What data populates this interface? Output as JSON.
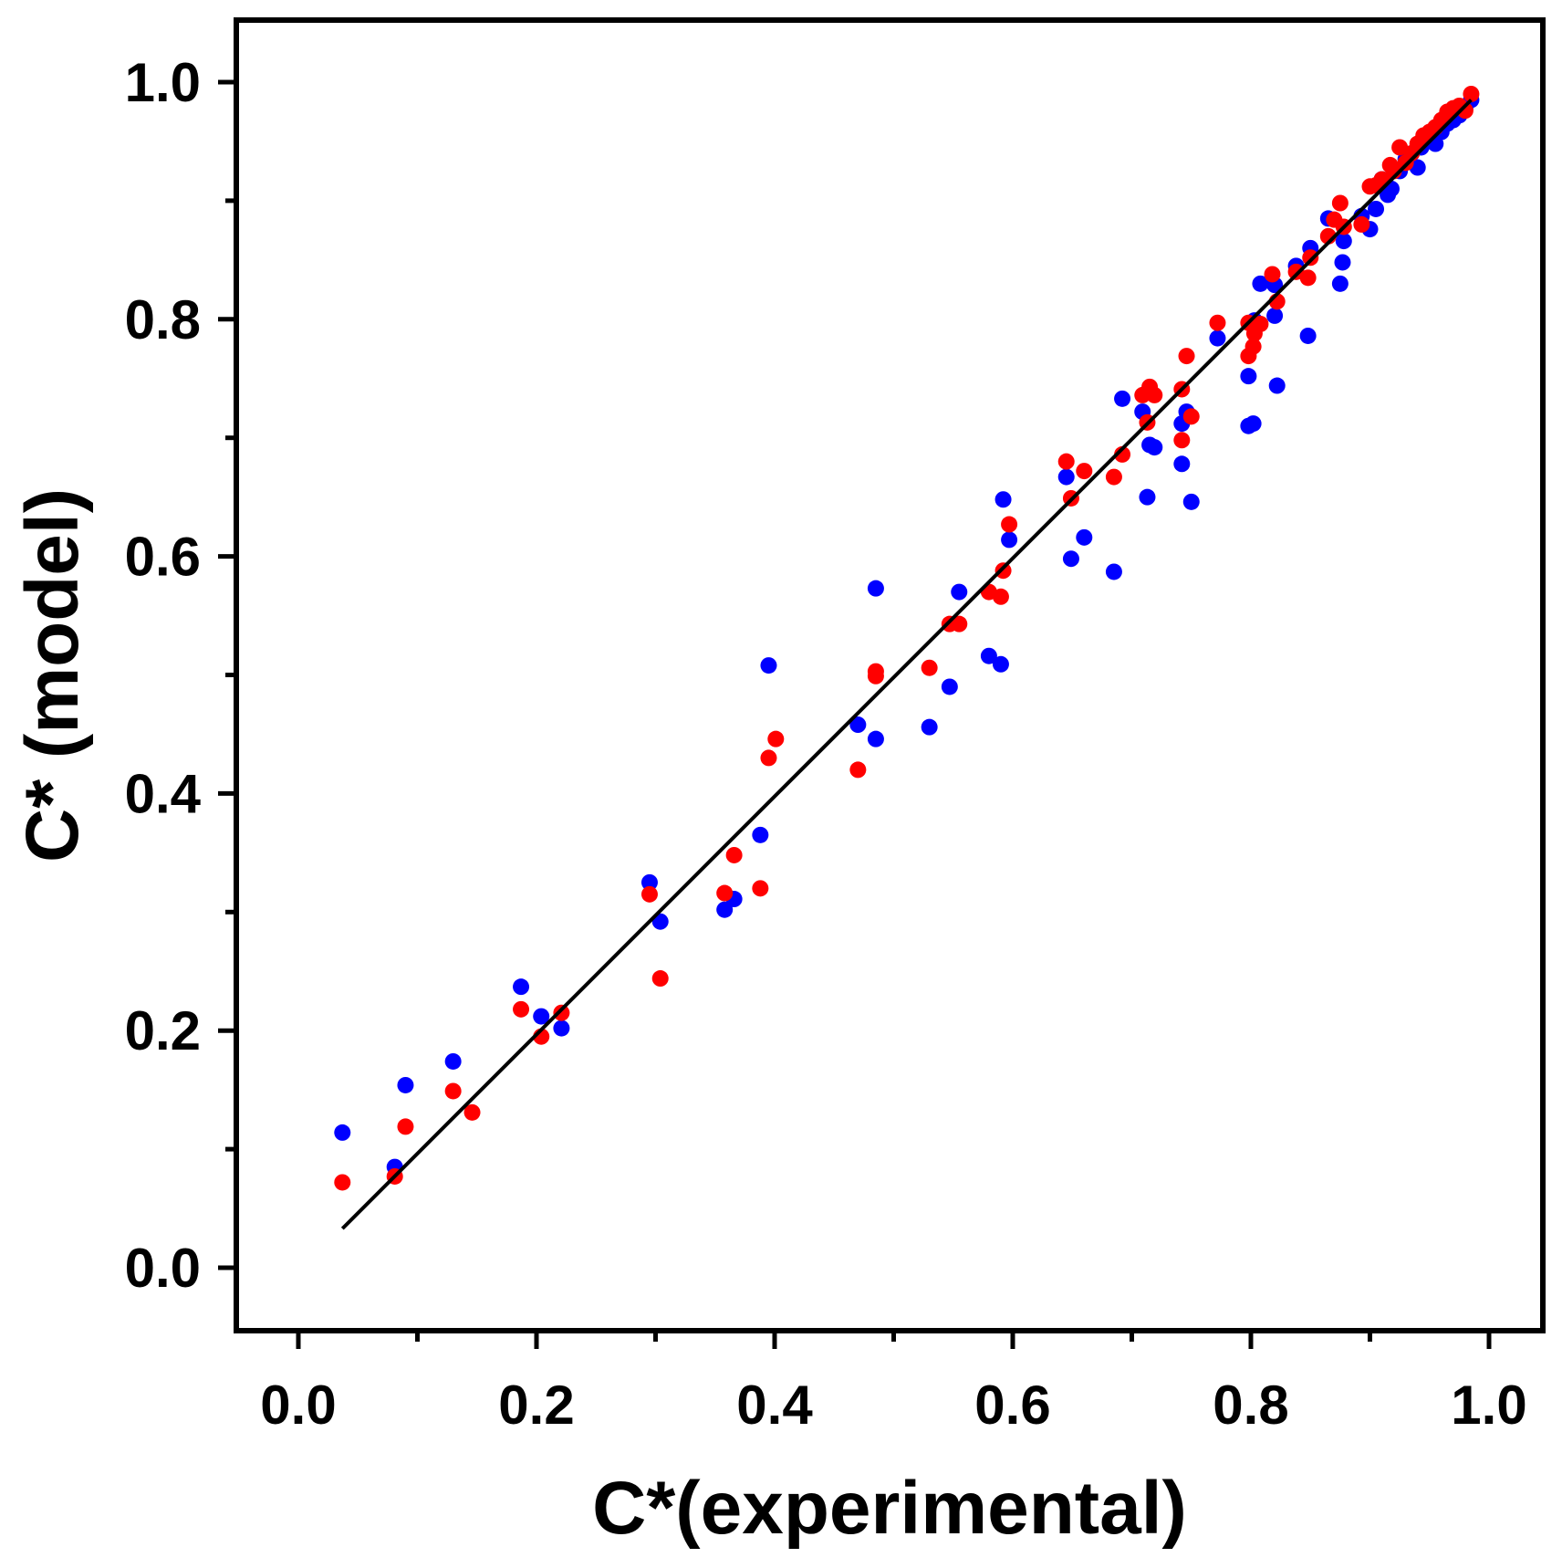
{
  "chart_data": {
    "type": "scatter",
    "title": "",
    "xlabel": "C*(experimental)",
    "ylabel": "C* (model)",
    "xlim": [
      -0.05,
      1.05
    ],
    "ylim": [
      -0.05,
      1.05
    ],
    "x_ticks": [
      "0.0",
      "0.2",
      "0.4",
      "0.6",
      "0.8",
      "1.0"
    ],
    "y_ticks": [
      "0.0",
      "0.2",
      "0.4",
      "0.6",
      "0.8",
      "1.0"
    ],
    "grid": false,
    "series": [
      {
        "name": "blue",
        "color": "#0000ff",
        "points": [
          [
            0.037,
            0.114
          ],
          [
            0.081,
            0.085
          ],
          [
            0.09,
            0.154
          ],
          [
            0.13,
            0.174
          ],
          [
            0.187,
            0.237
          ],
          [
            0.204,
            0.212
          ],
          [
            0.221,
            0.202
          ],
          [
            0.295,
            0.325
          ],
          [
            0.304,
            0.292
          ],
          [
            0.358,
            0.302
          ],
          [
            0.366,
            0.311
          ],
          [
            0.388,
            0.365
          ],
          [
            0.395,
            0.508
          ],
          [
            0.47,
            0.458
          ],
          [
            0.485,
            0.446
          ],
          [
            0.485,
            0.573
          ],
          [
            0.53,
            0.456
          ],
          [
            0.547,
            0.49
          ],
          [
            0.555,
            0.57
          ],
          [
            0.58,
            0.516
          ],
          [
            0.59,
            0.509
          ],
          [
            0.592,
            0.648
          ],
          [
            0.597,
            0.614
          ],
          [
            0.645,
            0.667
          ],
          [
            0.649,
            0.598
          ],
          [
            0.66,
            0.616
          ],
          [
            0.685,
            0.587
          ],
          [
            0.692,
            0.733
          ],
          [
            0.709,
            0.722
          ],
          [
            0.713,
            0.65
          ],
          [
            0.715,
            0.694
          ],
          [
            0.719,
            0.692
          ],
          [
            0.742,
            0.712
          ],
          [
            0.742,
            0.678
          ],
          [
            0.746,
            0.722
          ],
          [
            0.75,
            0.646
          ],
          [
            0.772,
            0.784
          ],
          [
            0.798,
            0.71
          ],
          [
            0.798,
            0.752
          ],
          [
            0.802,
            0.712
          ],
          [
            0.803,
            0.799
          ],
          [
            0.808,
            0.83
          ],
          [
            0.82,
            0.829
          ],
          [
            0.82,
            0.803
          ],
          [
            0.822,
            0.744
          ],
          [
            0.838,
            0.845
          ],
          [
            0.848,
            0.786
          ],
          [
            0.85,
            0.86
          ],
          [
            0.865,
            0.885
          ],
          [
            0.875,
            0.83
          ],
          [
            0.877,
            0.848
          ],
          [
            0.878,
            0.866
          ],
          [
            0.893,
            0.887
          ],
          [
            0.9,
            0.876
          ],
          [
            0.905,
            0.893
          ],
          [
            0.91,
            0.918
          ],
          [
            0.915,
            0.905
          ],
          [
            0.918,
            0.91
          ],
          [
            0.925,
            0.925
          ],
          [
            0.93,
            0.935
          ],
          [
            0.935,
            0.94
          ],
          [
            0.94,
            0.928
          ],
          [
            0.943,
            0.945
          ],
          [
            0.95,
            0.952
          ],
          [
            0.955,
            0.948
          ],
          [
            0.96,
            0.958
          ],
          [
            0.965,
            0.965
          ],
          [
            0.97,
            0.968
          ],
          [
            0.975,
            0.972
          ],
          [
            0.98,
            0.978
          ],
          [
            0.985,
            0.985
          ]
        ]
      },
      {
        "name": "red",
        "color": "#ff0000",
        "points": [
          [
            0.037,
            0.072
          ],
          [
            0.081,
            0.077
          ],
          [
            0.09,
            0.119
          ],
          [
            0.13,
            0.149
          ],
          [
            0.146,
            0.131
          ],
          [
            0.187,
            0.218
          ],
          [
            0.204,
            0.195
          ],
          [
            0.221,
            0.215
          ],
          [
            0.295,
            0.315
          ],
          [
            0.304,
            0.244
          ],
          [
            0.358,
            0.316
          ],
          [
            0.366,
            0.348
          ],
          [
            0.388,
            0.32
          ],
          [
            0.395,
            0.43
          ],
          [
            0.401,
            0.446
          ],
          [
            0.47,
            0.42
          ],
          [
            0.485,
            0.499
          ],
          [
            0.485,
            0.503
          ],
          [
            0.53,
            0.506
          ],
          [
            0.547,
            0.543
          ],
          [
            0.555,
            0.543
          ],
          [
            0.58,
            0.57
          ],
          [
            0.59,
            0.566
          ],
          [
            0.592,
            0.588
          ],
          [
            0.597,
            0.627
          ],
          [
            0.645,
            0.68
          ],
          [
            0.649,
            0.649
          ],
          [
            0.66,
            0.672
          ],
          [
            0.685,
            0.667
          ],
          [
            0.692,
            0.686
          ],
          [
            0.709,
            0.736
          ],
          [
            0.713,
            0.713
          ],
          [
            0.715,
            0.743
          ],
          [
            0.719,
            0.736
          ],
          [
            0.742,
            0.698
          ],
          [
            0.742,
            0.741
          ],
          [
            0.746,
            0.769
          ],
          [
            0.75,
            0.718
          ],
          [
            0.772,
            0.797
          ],
          [
            0.798,
            0.769
          ],
          [
            0.798,
            0.797
          ],
          [
            0.802,
            0.777
          ],
          [
            0.803,
            0.788
          ],
          [
            0.808,
            0.796
          ],
          [
            0.818,
            0.838
          ],
          [
            0.822,
            0.815
          ],
          [
            0.838,
            0.84
          ],
          [
            0.848,
            0.835
          ],
          [
            0.85,
            0.852
          ],
          [
            0.865,
            0.87
          ],
          [
            0.87,
            0.884
          ],
          [
            0.875,
            0.898
          ],
          [
            0.878,
            0.878
          ],
          [
            0.893,
            0.88
          ],
          [
            0.9,
            0.912
          ],
          [
            0.905,
            0.913
          ],
          [
            0.91,
            0.918
          ],
          [
            0.917,
            0.93
          ],
          [
            0.92,
            0.925
          ],
          [
            0.925,
            0.945
          ],
          [
            0.93,
            0.932
          ],
          [
            0.935,
            0.94
          ],
          [
            0.94,
            0.948
          ],
          [
            0.945,
            0.955
          ],
          [
            0.95,
            0.958
          ],
          [
            0.955,
            0.962
          ],
          [
            0.96,
            0.968
          ],
          [
            0.965,
            0.975
          ],
          [
            0.97,
            0.978
          ],
          [
            0.975,
            0.98
          ],
          [
            0.98,
            0.976
          ],
          [
            0.985,
            0.99
          ]
        ]
      }
    ],
    "fit_line": {
      "color": "#000000",
      "x": [
        0.037,
        0.985
      ],
      "y": [
        0.033,
        0.985
      ]
    }
  }
}
